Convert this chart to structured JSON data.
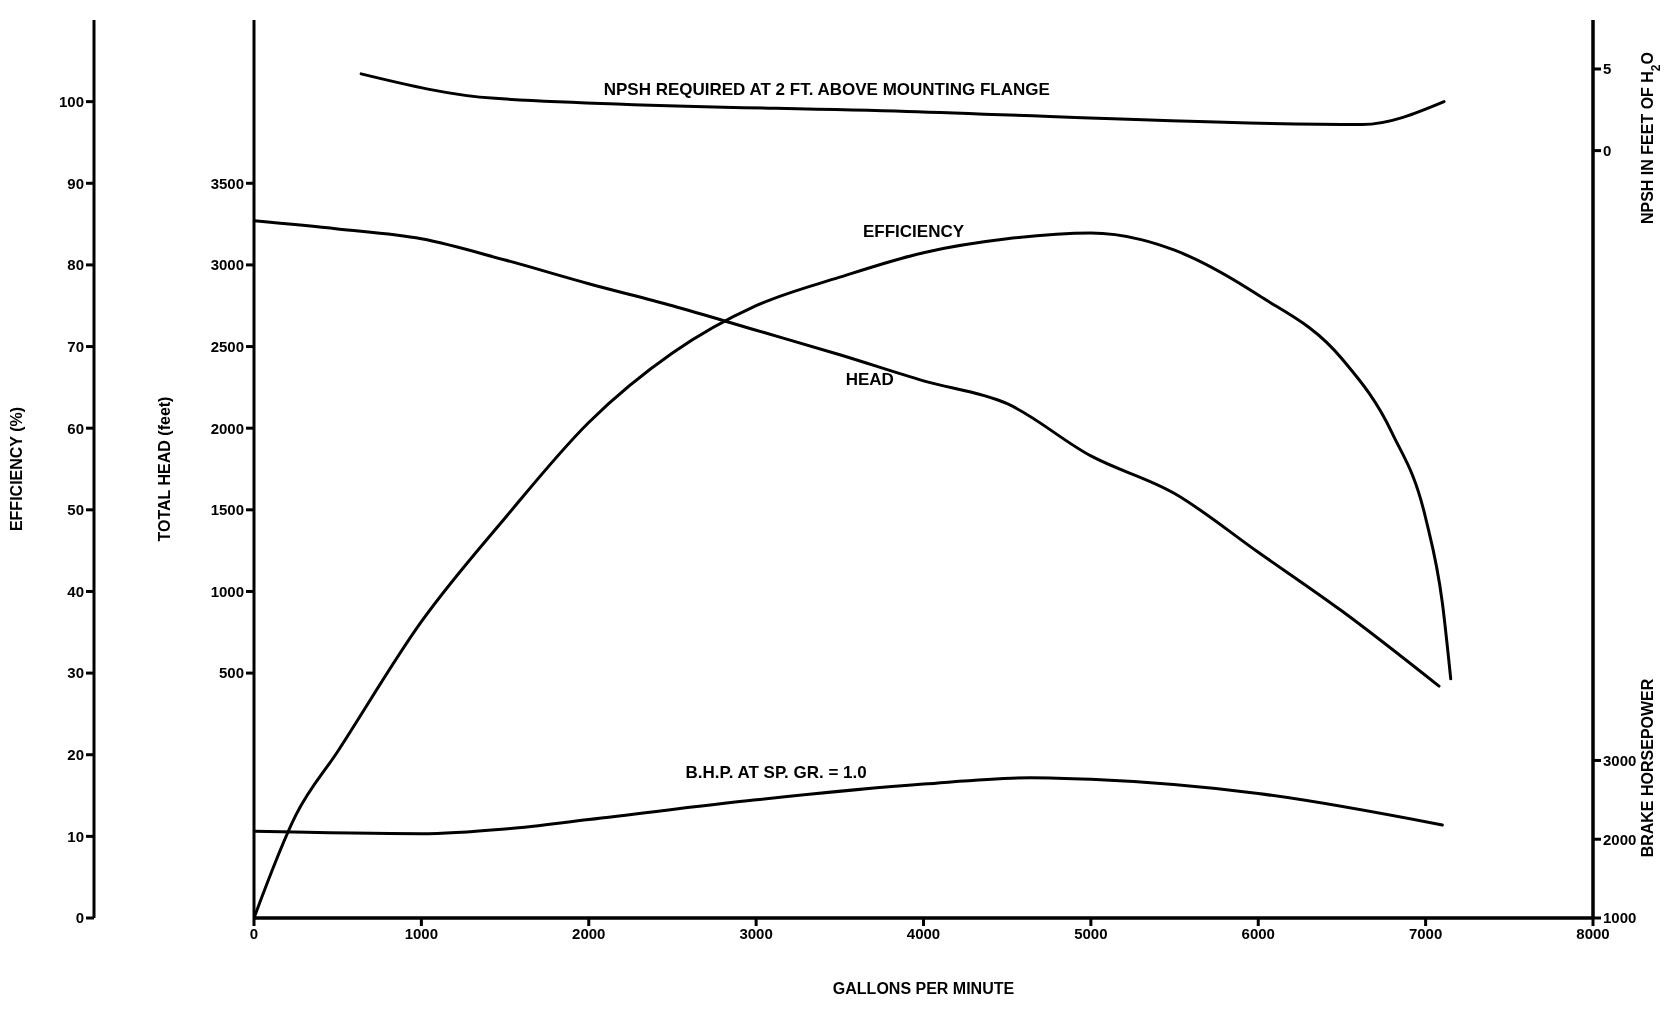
{
  "chart_data": [
    {
      "type": "line",
      "xlabel": "GALLONS PER MINUTE",
      "ylabel": "EFFICIENCY (%)",
      "y2label": "TOTAL HEAD (feet)",
      "y3label": "BRAKE HORSEPOWER",
      "xlim": [
        0,
        8000
      ],
      "xticks": [
        0,
        1000,
        2000,
        3000,
        4000,
        5000,
        6000,
        7000,
        8000
      ],
      "ylim": [
        0,
        110
      ],
      "yticks": [
        0,
        10,
        20,
        30,
        40,
        50,
        60,
        70,
        80,
        90,
        100
      ],
      "y2lim": [
        -1000,
        4500
      ],
      "y2ticks": [
        500,
        1000,
        1500,
        2000,
        2500,
        3000,
        3500
      ],
      "y3lim": [
        1000,
        12400
      ],
      "y3ticks": [
        1000,
        2000,
        3000
      ],
      "grid": false,
      "legend": false,
      "marker": "none",
      "line_style": "solid",
      "series": [
        {
          "name": "EFFICIENCY",
          "color": "#000000",
          "x": [
            0,
            250,
            500,
            1000,
            1500,
            2000,
            2500,
            3000,
            3500,
            4000,
            4500,
            5000,
            5300,
            5500,
            6000,
            6500,
            6800,
            7000,
            7100,
            7150
          ],
          "values": [
            0,
            12.6,
            20.4,
            36.3,
            49,
            60.7,
            69.2,
            75,
            78.5,
            81.5,
            83.2,
            83.9,
            83.1,
            81.8,
            76.3,
            68.5,
            59.4,
            49,
            38.6,
            29.3
          ]
        },
        {
          "name": "HEAD",
          "color": "#000000",
          "axis": "y2",
          "x": [
            0,
            500,
            1000,
            1500,
            2000,
            2500,
            3000,
            3500,
            4000,
            4500,
            5000,
            5500,
            6000,
            6500,
            7080
          ],
          "values": [
            3270,
            3220,
            3160,
            3030,
            2885,
            2750,
            2600,
            2450,
            2290,
            2150,
            1830,
            1600,
            1240,
            880,
            420
          ]
        },
        {
          "name": "B.H.P. AT SP. GR. = 1.0",
          "color": "#000000",
          "axis": "y3",
          "x": [
            0,
            1000,
            1500,
            2000,
            3000,
            4000,
            4640,
            5000,
            6000,
            7100
          ],
          "values": [
            2100,
            2070,
            2130,
            2250,
            2500,
            2700,
            2780,
            2760,
            2580,
            2180
          ]
        }
      ]
    },
    {
      "type": "line",
      "ylabel": "NPSH IN FEET OF H$_{2}$O",
      "xlim": [
        0,
        8000
      ],
      "ylim": [
        -47,
        8
      ],
      "yticks": [
        0,
        5
      ],
      "tick_labels": "y",
      "grid": false,
      "legend": false,
      "marker": "none",
      "line_style": "solid",
      "series": [
        {
          "name": "NPSH REQUIRED AT 2 FT. ABOVE MOUNTING FLANGE",
          "color": "#000000",
          "x": [
            640,
            1440,
            3900,
            6620,
            7110
          ],
          "values": [
            4.7,
            3.2,
            2.4,
            1.6,
            3.0
          ]
        }
      ]
    }
  ]
}
